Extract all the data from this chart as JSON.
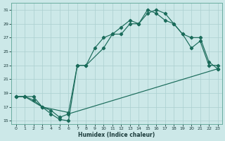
{
  "xlabel": "Humidex (Indice chaleur)",
  "bg_color": "#cce8e8",
  "grid_color": "#aacfcf",
  "line_color": "#1a6b5a",
  "xlim": [
    -0.5,
    23.5
  ],
  "ylim": [
    14.5,
    32.0
  ],
  "xticks": [
    0,
    1,
    2,
    3,
    4,
    5,
    6,
    7,
    8,
    9,
    10,
    11,
    12,
    13,
    14,
    15,
    16,
    17,
    18,
    19,
    20,
    21,
    22,
    23
  ],
  "yticks": [
    15,
    17,
    19,
    21,
    23,
    25,
    27,
    29,
    31
  ],
  "line1_x": [
    0,
    1,
    2,
    3,
    4,
    5,
    6,
    7,
    8,
    9,
    10,
    11,
    12,
    13,
    14,
    15,
    16,
    17,
    18,
    19,
    20,
    21,
    22,
    23
  ],
  "line1_y": [
    18.5,
    18.5,
    18.0,
    17.0,
    16.0,
    15.2,
    15.0,
    23.0,
    23.0,
    25.5,
    27.0,
    27.5,
    27.5,
    29.0,
    29.0,
    31.0,
    30.5,
    29.5,
    29.0,
    27.5,
    25.5,
    26.5,
    23.0,
    23.0
  ],
  "line2_x": [
    0,
    1,
    3,
    6,
    7,
    8,
    10,
    11,
    12,
    13,
    14,
    15,
    16,
    17,
    18,
    19,
    20,
    21,
    22,
    23
  ],
  "line2_y": [
    18.5,
    18.5,
    17.0,
    16.2,
    23.0,
    23.0,
    25.5,
    27.5,
    28.5,
    29.5,
    29.0,
    30.5,
    31.0,
    30.5,
    29.0,
    27.5,
    27.0,
    27.0,
    23.5,
    22.5
  ],
  "line3_x": [
    0,
    1,
    2,
    3,
    4,
    5,
    6,
    23
  ],
  "line3_y": [
    18.5,
    18.5,
    18.5,
    17.0,
    16.5,
    15.5,
    16.0,
    22.5
  ]
}
